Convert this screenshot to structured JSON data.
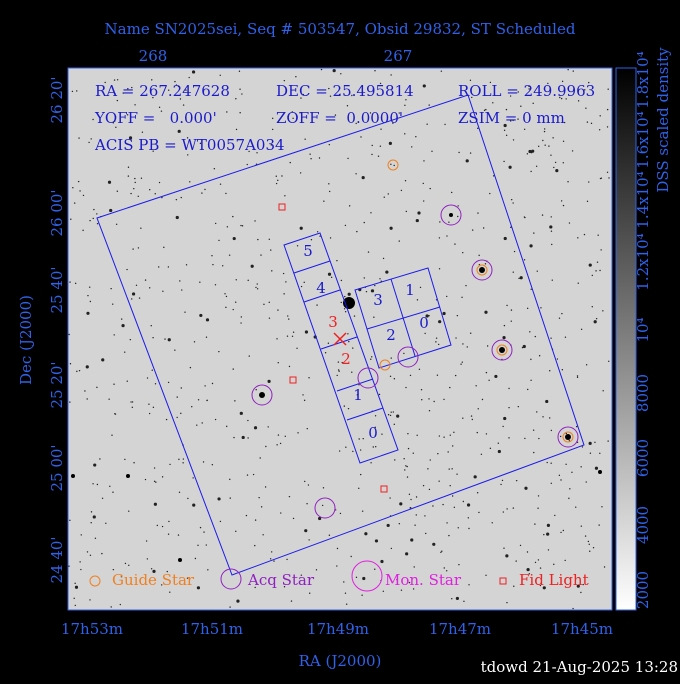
{
  "title": "Name SN2025sei, Seq # 503547, Obsid 29832, ST Scheduled",
  "info": {
    "ra": "RA = 267.247628",
    "dec": "DEC = 25.495814",
    "roll": "ROLL = 249.9963",
    "yoff": "YOFF =   0.000'",
    "zoff": "ZOFF =  0.0000'",
    "zsim": "ZSIM = 0 mm",
    "acis": "ACIS PB = WT0057A034"
  },
  "top_ticks": [
    "268",
    "267"
  ],
  "dec_ticks": [
    "26 20'",
    "26 00'",
    "25 40'",
    "25 20'",
    "25 00'",
    "24 40'"
  ],
  "ra_ticks": [
    "17h53m",
    "17h51m",
    "17h49m",
    "17h47m",
    "17h45m"
  ],
  "x_label": "RA (J2000)",
  "y_label": "Dec (J2000)",
  "colorbar": {
    "label": "DSS scaled density",
    "ticks": [
      "2000",
      "4000",
      "6000",
      "8000",
      "10⁴",
      "1.2x10⁴",
      "1.4x10⁴",
      "1.6x10⁴",
      "1.8x10⁴"
    ]
  },
  "acis_s_chips": [
    "5",
    "4",
    "3",
    "2",
    "1",
    "0"
  ],
  "acis_i_chips": [
    "3",
    "1",
    "2",
    "0"
  ],
  "aimpoint_labels": [
    "3",
    "2"
  ],
  "legend": [
    "Guide Star",
    "Acq Star",
    "Mon. Star",
    "Fid Light"
  ],
  "footer": "tdowd 21-Aug-2025 13:28"
}
